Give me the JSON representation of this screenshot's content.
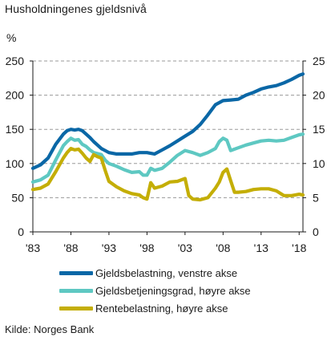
{
  "title": "Husholdningenes gjeldsnivå",
  "unit": "%",
  "source": "Kilde: Norges Bank",
  "chart_data": {
    "type": "line",
    "title": "Husholdningenes gjeldsnivå",
    "ylabel": "%",
    "ylim_left": [
      0,
      250
    ],
    "ylim_right": [
      0,
      25
    ],
    "yticks_left": [
      0,
      50,
      100,
      150,
      200,
      250
    ],
    "yticks_right": [
      0,
      5,
      10,
      15,
      20,
      25
    ],
    "xlim": [
      1983,
      2018.5
    ],
    "xticks": [
      1983,
      1988,
      1993,
      1998,
      2003,
      2008,
      2013,
      2018
    ],
    "xtick_labels": [
      "'83",
      "'88",
      "'93",
      "'98",
      "'03",
      "'08",
      "'13",
      "'18"
    ],
    "grid": "horizontal dashed",
    "series": [
      {
        "name": "Gjeldsbelastning, venstre akse",
        "axis": "left",
        "color": "#0a67a6",
        "x": [
          1983,
          1984,
          1985,
          1986,
          1987,
          1987.5,
          1988,
          1988.5,
          1989,
          1989.5,
          1990,
          1990.5,
          1991,
          1991.5,
          1992,
          1993,
          1994,
          1995,
          1996,
          1997,
          1998,
          1999,
          2000,
          2001,
          2002,
          2003,
          2004,
          2005,
          2006,
          2007,
          2008,
          2009,
          2010,
          2011,
          2012,
          2013,
          2014,
          2015,
          2016,
          2017,
          2018,
          2018.5
        ],
        "y": [
          93,
          98,
          108,
          128,
          143,
          148,
          150,
          149,
          150,
          148,
          143,
          138,
          132,
          127,
          122,
          116,
          114,
          114,
          114,
          116,
          116,
          114,
          120,
          126,
          133,
          140,
          147,
          157,
          171,
          186,
          192,
          193,
          194,
          200,
          204,
          209,
          212,
          214,
          218,
          223,
          229,
          231
        ]
      },
      {
        "name": "Gjeldsbetjeningsgrad, høyre akse",
        "axis": "right",
        "color": "#5ec8c2",
        "x": [
          1983,
          1984,
          1985,
          1986,
          1987,
          1987.5,
          1988,
          1988.5,
          1989,
          1989.5,
          1990,
          1990.5,
          1991,
          1992,
          1992.5,
          1993,
          1994,
          1995,
          1996,
          1997,
          1997.5,
          1998,
          1998.5,
          1999,
          2000,
          2001,
          2002,
          2003,
          2004,
          2005,
          2006,
          2007,
          2007.5,
          2008,
          2008.5,
          2009,
          2010,
          2011,
          2012,
          2013,
          2014,
          2015,
          2016,
          2017,
          2018,
          2018.5
        ],
        "y": [
          7.3,
          7.6,
          8.3,
          10.5,
          12.6,
          13.2,
          13.7,
          13.4,
          13.5,
          12.8,
          12.5,
          12.0,
          11.6,
          11.3,
          10.5,
          10.0,
          9.6,
          9.1,
          8.7,
          8.8,
          8.3,
          8.3,
          9.3,
          9.0,
          9.3,
          10.2,
          11.2,
          11.9,
          11.6,
          11.2,
          11.6,
          12.2,
          13.2,
          13.7,
          13.4,
          11.9,
          12.3,
          12.7,
          13.0,
          13.3,
          13.4,
          13.3,
          13.4,
          13.8,
          14.2,
          14.3
        ]
      },
      {
        "name": "Rentebelastning, høyre akse",
        "axis": "right",
        "color": "#c4ae06",
        "x": [
          1983,
          1984,
          1985,
          1986,
          1987,
          1987.5,
          1988,
          1988.5,
          1989,
          1989.5,
          1990,
          1990.5,
          1991,
          1991.5,
          1992,
          1992.5,
          1993,
          1994,
          1995,
          1996,
          1997,
          1997.5,
          1998,
          1998.5,
          1999,
          2000,
          2001,
          2002,
          2003,
          2003.5,
          2004,
          2005,
          2006,
          2007,
          2007.5,
          2008,
          2008.5,
          2009,
          2009.5,
          2010,
          2011,
          2012,
          2013,
          2014,
          2015,
          2016,
          2017,
          2018,
          2018.5
        ],
        "y": [
          6.2,
          6.4,
          7.0,
          8.8,
          10.8,
          11.6,
          12.2,
          12.0,
          12.1,
          11.5,
          10.8,
          10.3,
          11.3,
          11.0,
          10.8,
          9.0,
          7.4,
          6.6,
          6.0,
          5.6,
          5.4,
          5.0,
          4.8,
          7.2,
          6.4,
          6.7,
          7.3,
          7.4,
          7.8,
          5.3,
          4.8,
          4.7,
          5.0,
          6.4,
          7.3,
          8.7,
          9.2,
          7.5,
          5.8,
          5.8,
          5.9,
          6.2,
          6.3,
          6.3,
          6.0,
          5.3,
          5.3,
          5.5,
          5.4
        ]
      }
    ]
  }
}
